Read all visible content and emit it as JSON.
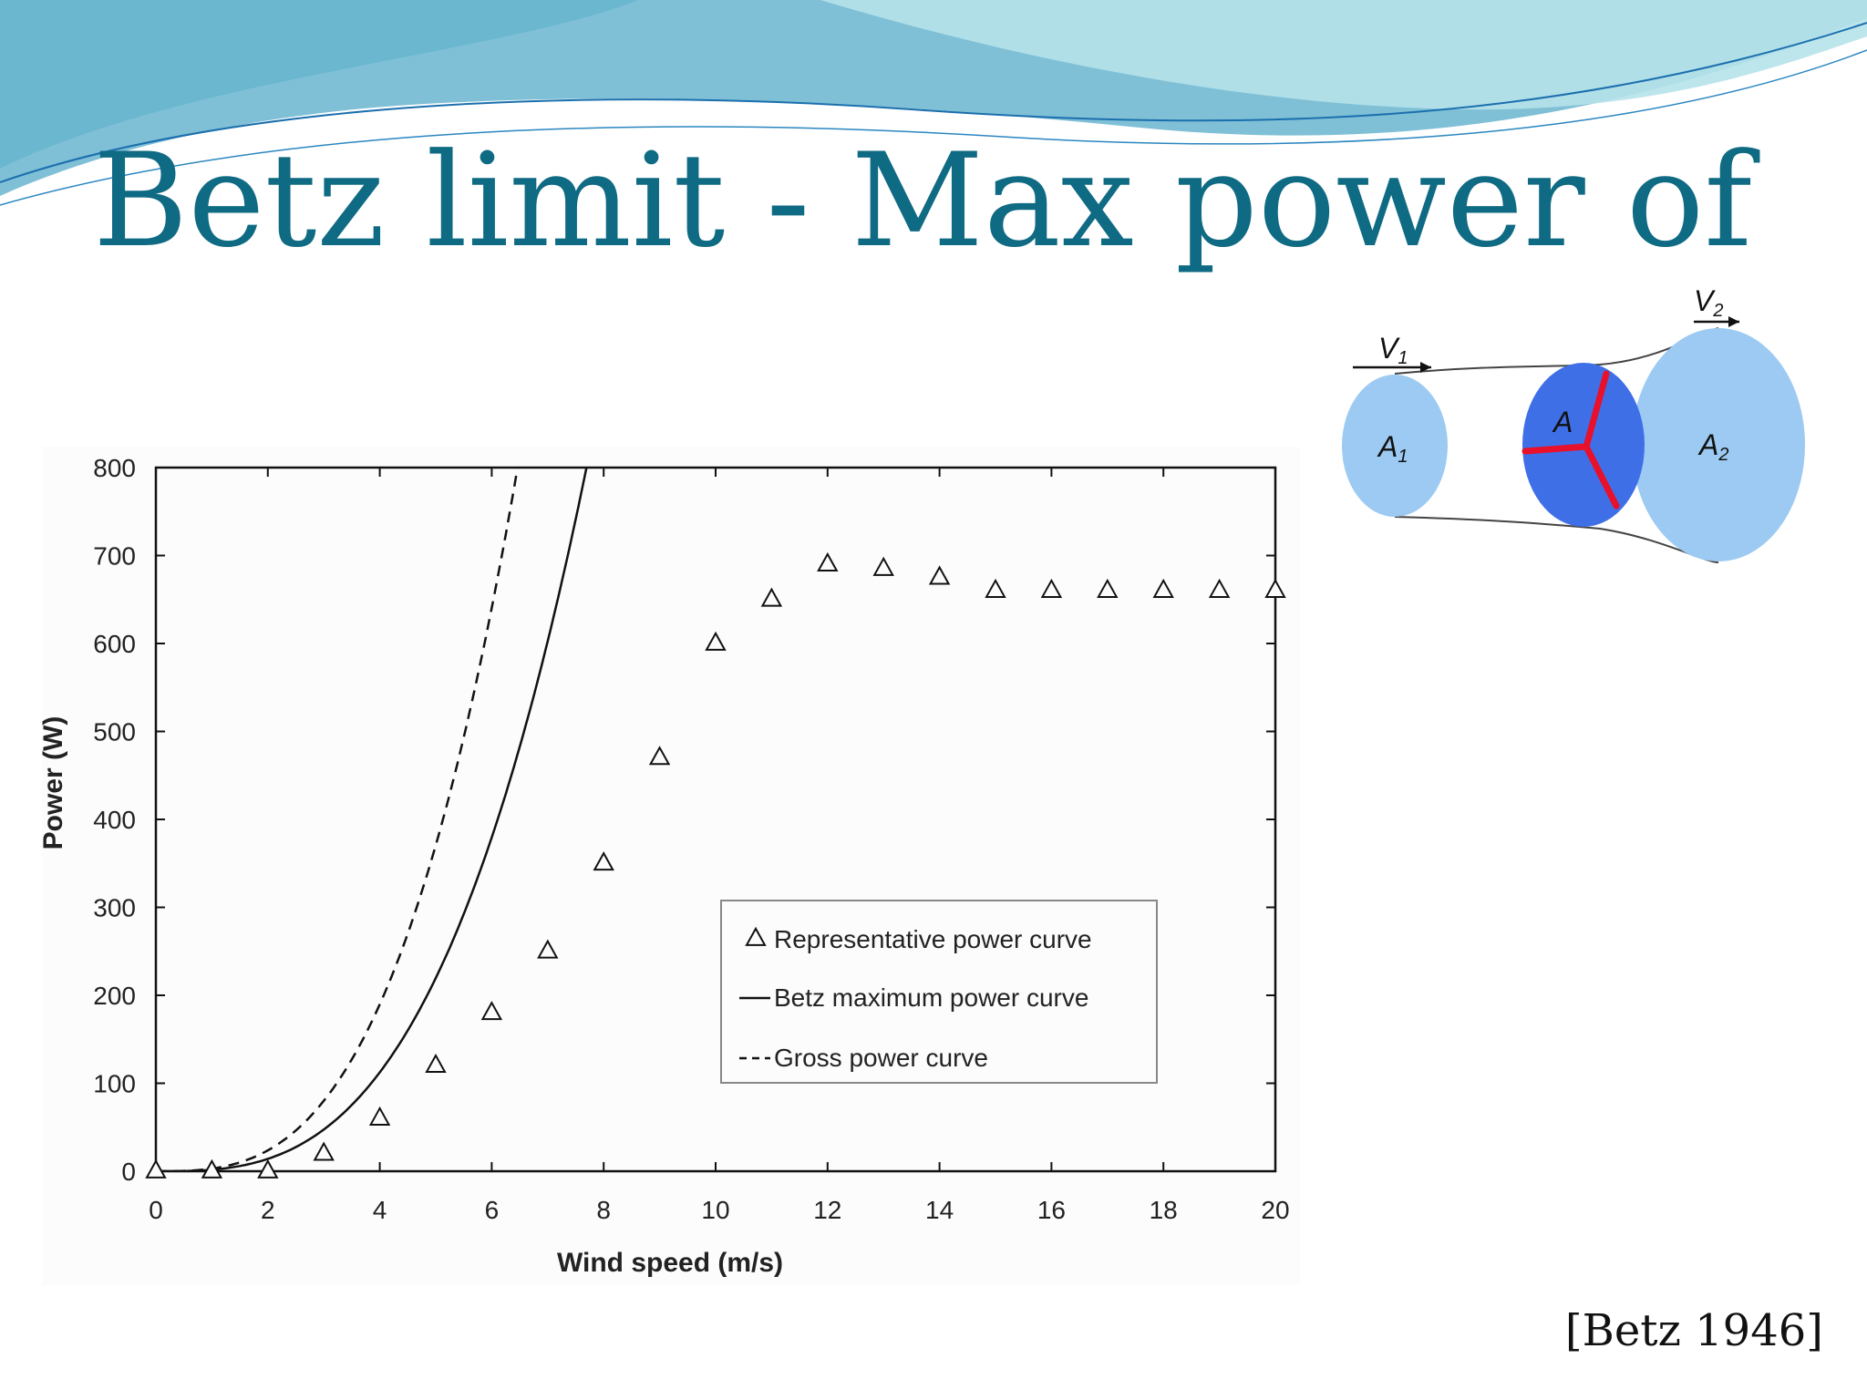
{
  "slide": {
    "title": "Betz limit - Max power of",
    "citation": "[Betz 1946]",
    "title_color": "#0f6a83"
  },
  "diagram": {
    "labels": {
      "v1": "V",
      "v1_sub": "1",
      "v2": "V",
      "v2_sub": "2",
      "a": "A",
      "a1": "A",
      "a1_sub": "1",
      "a2": "A",
      "a2_sub": "2"
    },
    "colors": {
      "stream_disc": "#9ccaf2",
      "rotor_disc": "#3f6fe6",
      "blade": "#e8102a"
    }
  },
  "chart_data": {
    "type": "scatter",
    "xlabel": "Wind speed (m/s)",
    "ylabel": "Power (W)",
    "xlim": [
      0,
      20
    ],
    "ylim": [
      0,
      800
    ],
    "x_ticks": [
      0,
      2,
      4,
      6,
      8,
      10,
      12,
      14,
      16,
      18,
      20
    ],
    "y_ticks": [
      0,
      100,
      200,
      300,
      400,
      500,
      600,
      700,
      800
    ],
    "legend_position": "lower-right",
    "grid": false,
    "series": [
      {
        "name": "Representative power curve",
        "type": "scatter",
        "marker": "triangle",
        "x": [
          0,
          1,
          2,
          3,
          4,
          5,
          6,
          7,
          8,
          9,
          10,
          11,
          12,
          13,
          14,
          15,
          16,
          17,
          18,
          19,
          20
        ],
        "y": [
          0,
          0,
          0,
          20,
          60,
          120,
          180,
          250,
          350,
          470,
          600,
          650,
          690,
          685,
          675,
          660,
          660,
          660,
          660,
          660,
          660
        ]
      },
      {
        "name": "Betz maximum power curve",
        "type": "line",
        "style": "solid",
        "formula_coefficient": 1.757,
        "exponent": 3
      },
      {
        "name": "Gross power curve",
        "type": "line",
        "style": "dashed",
        "formula_coefficient": 2.965,
        "exponent": 3
      }
    ]
  }
}
